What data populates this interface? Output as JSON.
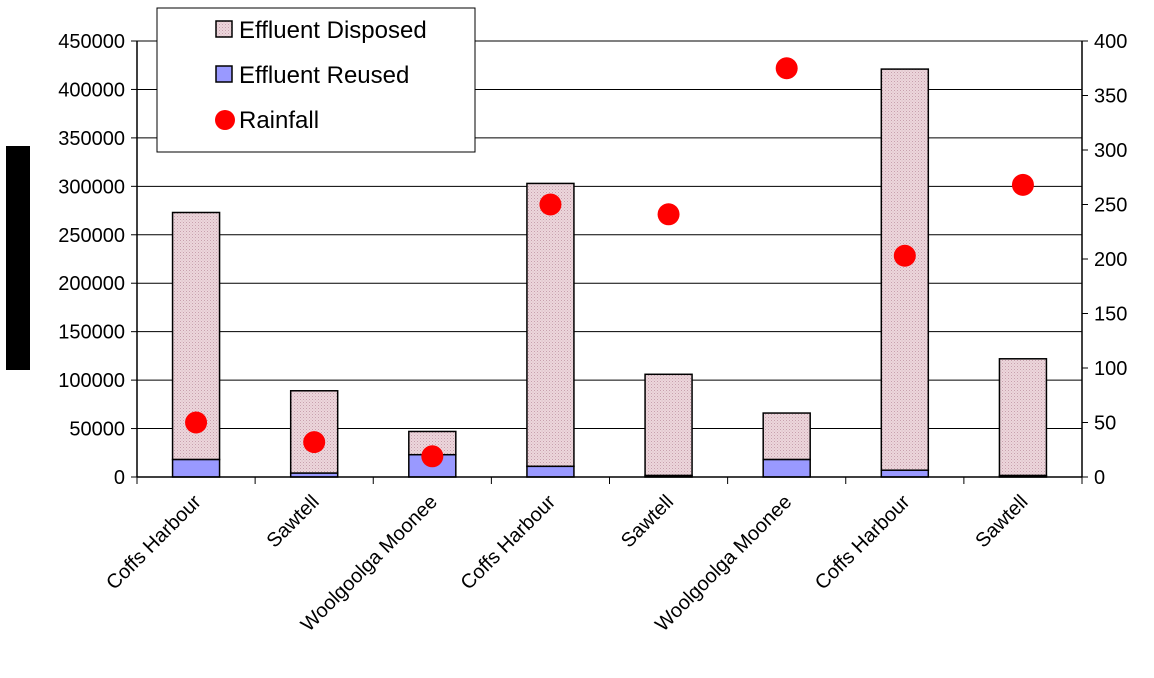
{
  "chart_data": {
    "type": "bar",
    "stacked": true,
    "categories": [
      "Coffs Harbour",
      "Sawtell",
      "Woolgoolga Moonee",
      "Coffs Harbour",
      "Sawtell",
      "Woolgoolga Moonee",
      "Coffs Harbour",
      "Sawtell"
    ],
    "series": [
      {
        "name": "Effluent Reused",
        "type": "bar",
        "axis": "left",
        "color": "#9999ff",
        "values": [
          18000,
          4000,
          23000,
          11000,
          1500,
          18000,
          7000,
          1500
        ]
      },
      {
        "name": "Effluent Disposed",
        "type": "bar",
        "axis": "left",
        "color": "#e8c8d0",
        "values": [
          255000,
          85000,
          24000,
          292000,
          104500,
          48000,
          414000,
          120500
        ]
      },
      {
        "name": "Rainfall",
        "type": "scatter",
        "axis": "right",
        "color": "#ff0000",
        "values": [
          50,
          32,
          19,
          250,
          241,
          375,
          203,
          268
        ]
      }
    ],
    "legend_order": [
      "Effluent Disposed",
      "Effluent Reused",
      "Rainfall"
    ],
    "yleft": {
      "min": 0,
      "max": 450000,
      "step": 50000,
      "ticks": [
        "0",
        "50000",
        "100000",
        "150000",
        "200000",
        "250000",
        "300000",
        "350000",
        "400000",
        "450000"
      ]
    },
    "yright": {
      "min": 0,
      "max": 400,
      "step": 50,
      "ticks": [
        "0",
        "50",
        "100",
        "150",
        "200",
        "250",
        "300",
        "350",
        "400"
      ]
    },
    "grid": true,
    "legend_position": "top-left"
  }
}
